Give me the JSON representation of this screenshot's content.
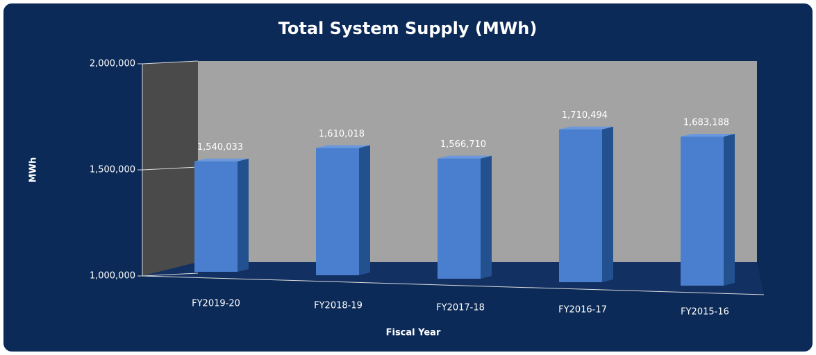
{
  "chart_data": {
    "type": "bar3d",
    "title": "Total System Supply (MWh)",
    "ylabel": "MWh",
    "xlabel": "Fiscal Year",
    "categories": [
      "FY2019-20",
      "FY2018-19",
      "FY2017-18",
      "FY2016-17",
      "FY2015-16"
    ],
    "values": [
      1540033,
      1610018,
      1566710,
      1710494,
      1683188
    ],
    "value_labels": [
      "1,540,033",
      "1,610,018",
      "1,566,710",
      "1,710,494",
      "1,683,188"
    ],
    "color": "#4a7fcf",
    "ylim": [
      1000000,
      2000000
    ],
    "yticks": [
      {
        "value": 1000000,
        "label": "1,000,000"
      },
      {
        "value": 1500000,
        "label": "1,500,000"
      },
      {
        "value": 2000000,
        "label": "2,000,000"
      }
    ]
  }
}
